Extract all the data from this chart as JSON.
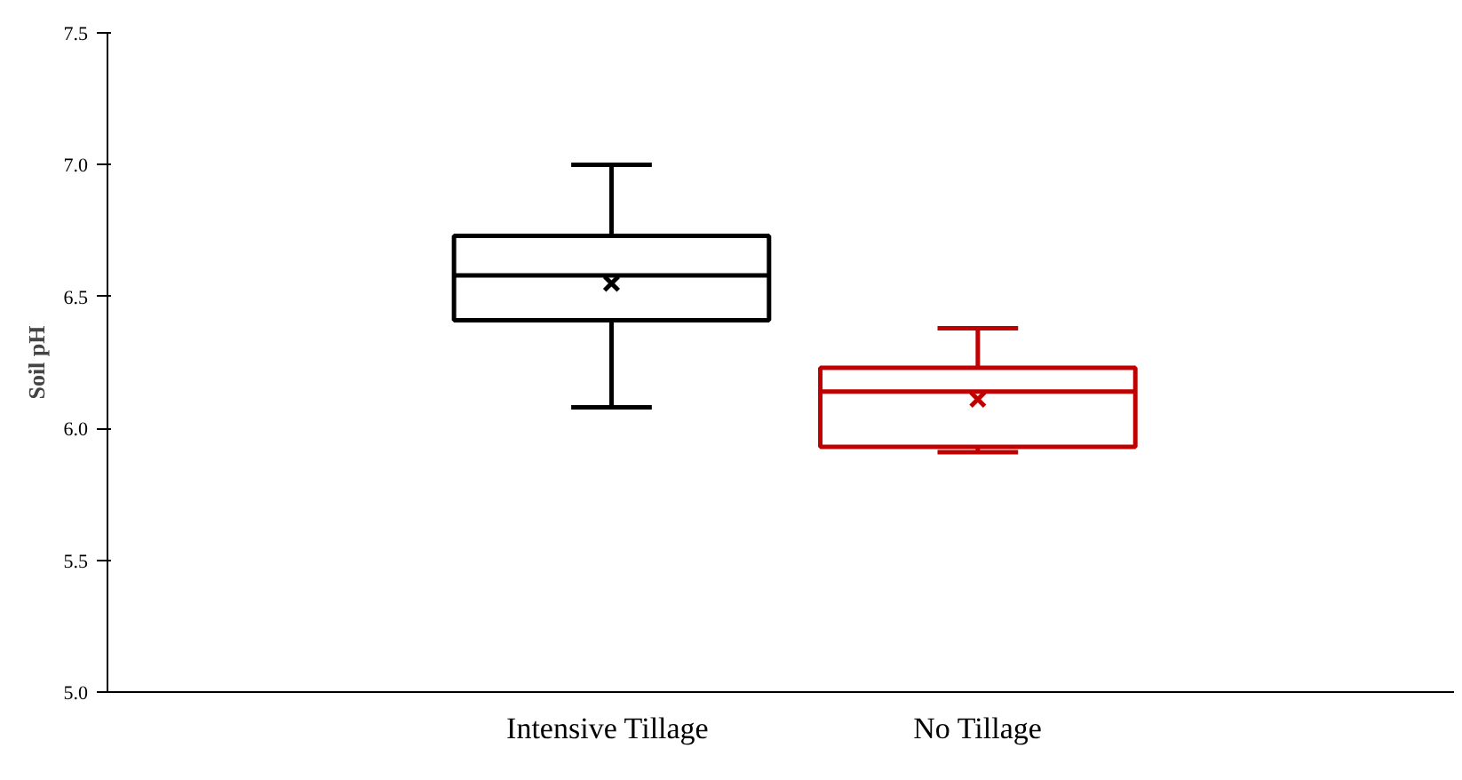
{
  "chart_data": {
    "type": "box",
    "ylabel": "Soil pH",
    "categories": [
      "Intensive  Tillage",
      "No Tillage"
    ],
    "colors": [
      "#000000",
      "#c00000"
    ],
    "boxes": [
      {
        "low": 6.08,
        "q1": 6.41,
        "median": 6.58,
        "q3": 6.73,
        "high": 7.0,
        "mean": 6.55
      },
      {
        "low": 5.91,
        "q1": 5.93,
        "median": 6.14,
        "q3": 6.23,
        "high": 6.38,
        "mean": 6.11
      }
    ],
    "ylim": [
      5.0,
      7.5
    ],
    "yticks": [
      {
        "value": 5.0,
        "label": "5.0"
      },
      5.5,
      {
        "value": 6.0,
        "label": "6.0"
      },
      6.5,
      {
        "value": 7.0,
        "label": "7.0"
      },
      7.5
    ],
    "grid": false
  }
}
